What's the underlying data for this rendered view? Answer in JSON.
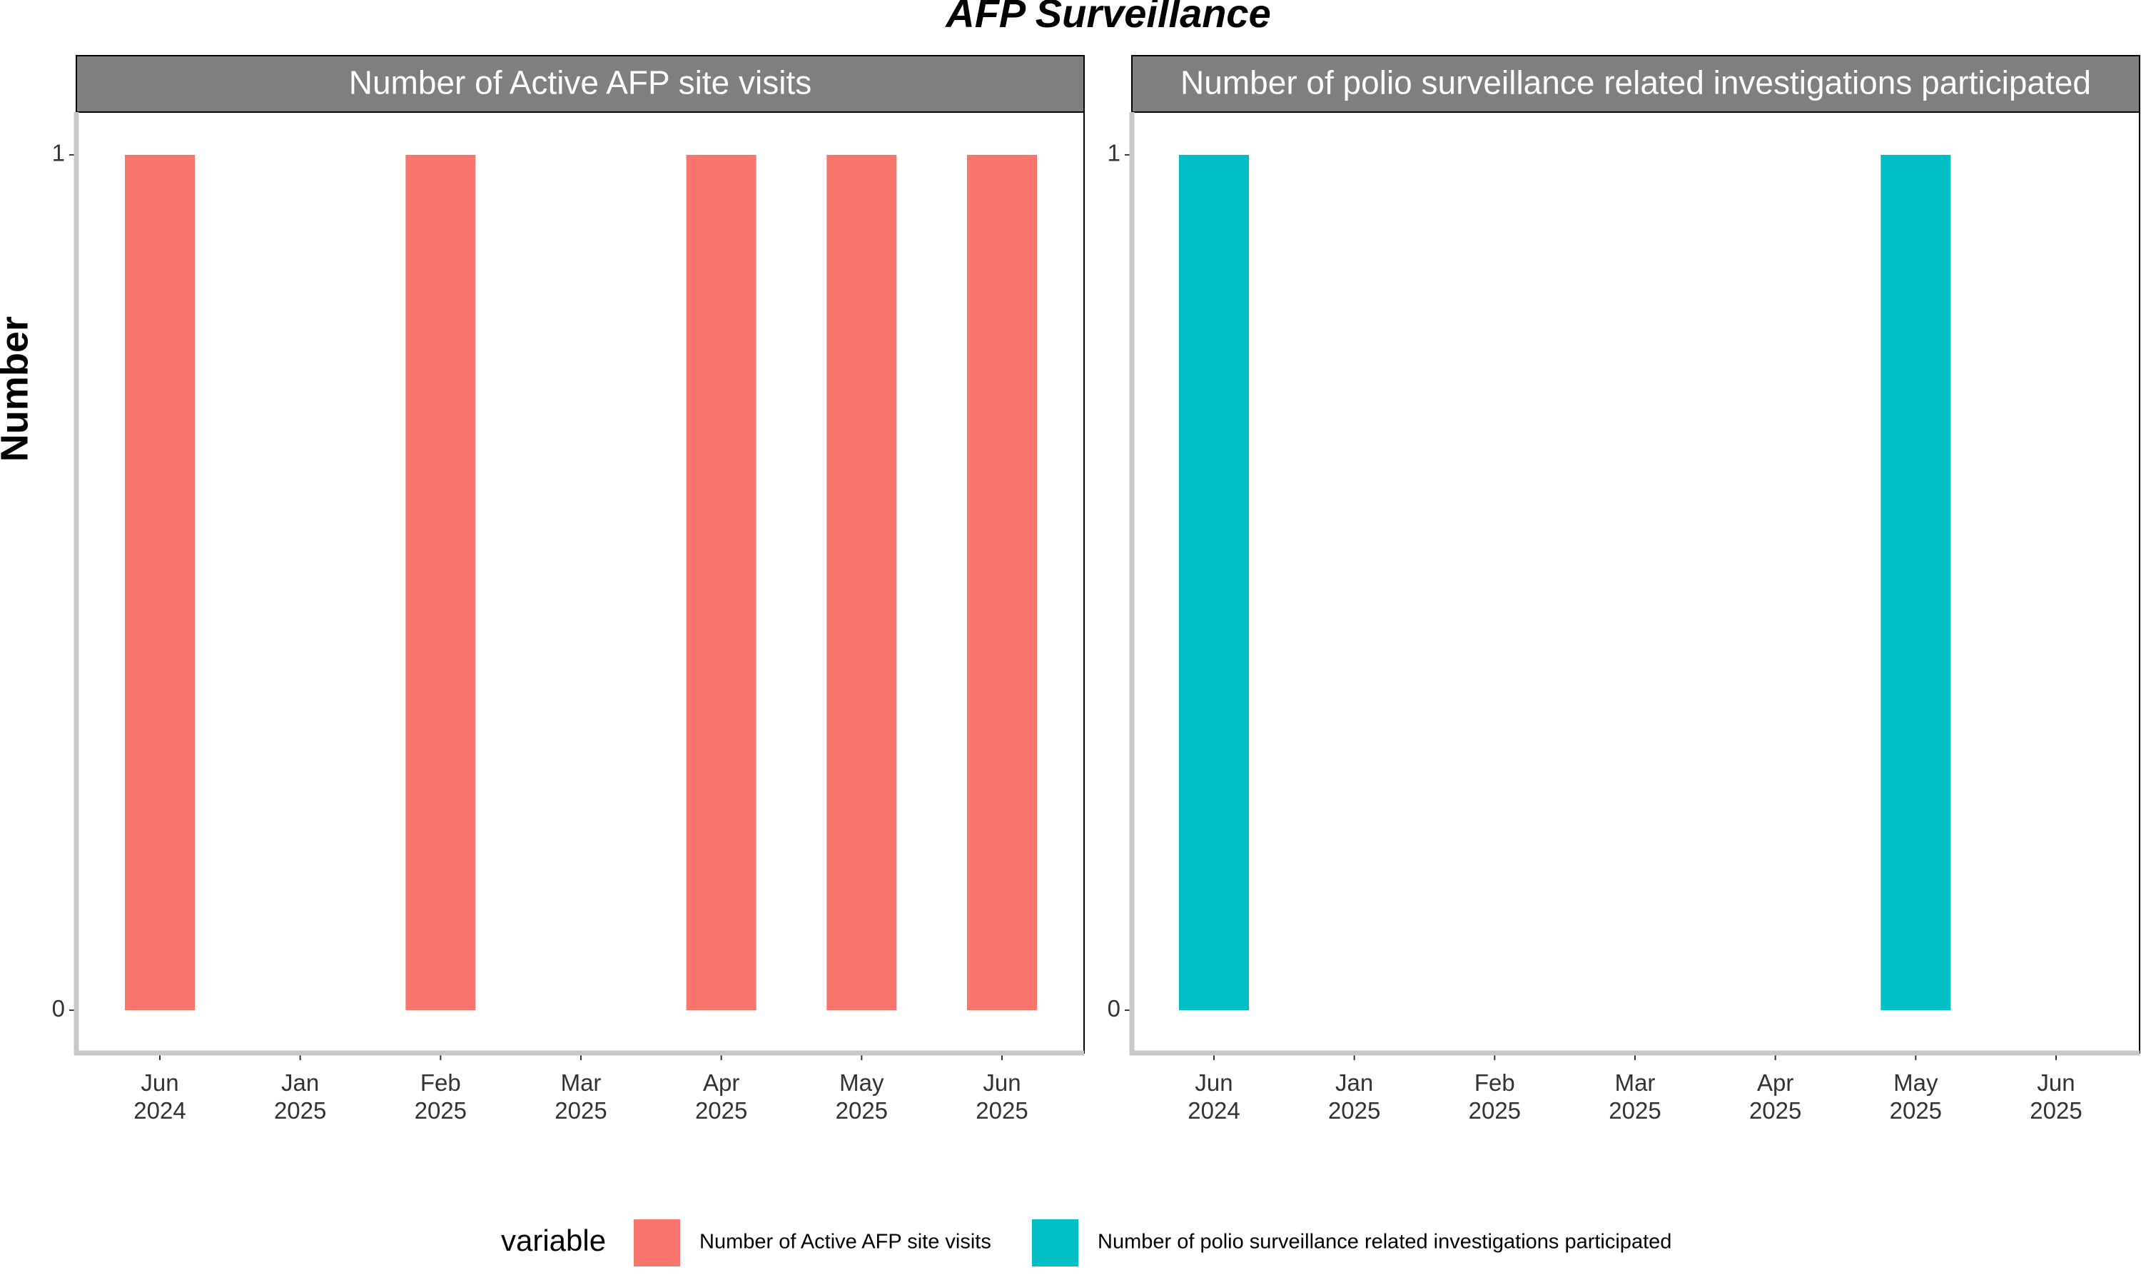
{
  "title": "AFP Surveillance",
  "y_label": "Number",
  "legend_title": "variable",
  "legend_position": "bottom",
  "chart_data": [
    {
      "type": "bar",
      "categories": [
        "Jun 2024",
        "Jan 2025",
        "Feb 2025",
        "Mar 2025",
        "Apr 2025",
        "May 2025",
        "Jun 2025"
      ],
      "series": [
        {
          "name": "Number of Active AFP site visits",
          "color": "#f8766d",
          "values": [
            1,
            0,
            1,
            0,
            1,
            1,
            1
          ]
        }
      ],
      "ylim": [
        -0.05,
        1.05
      ],
      "yticks": [
        0,
        1
      ]
    },
    {
      "type": "bar",
      "categories": [
        "Jun 2024",
        "Jan 2025",
        "Feb 2025",
        "Mar 2025",
        "Apr 2025",
        "May 2025",
        "Jun 2025"
      ],
      "series": [
        {
          "name": "Number of polio surveillance related investigations participated",
          "color": "#00bfc4",
          "values": [
            1,
            0,
            0,
            0,
            0,
            1,
            0
          ]
        }
      ],
      "ylim": [
        -0.05,
        1.05
      ],
      "yticks": [
        0,
        1
      ]
    }
  ]
}
